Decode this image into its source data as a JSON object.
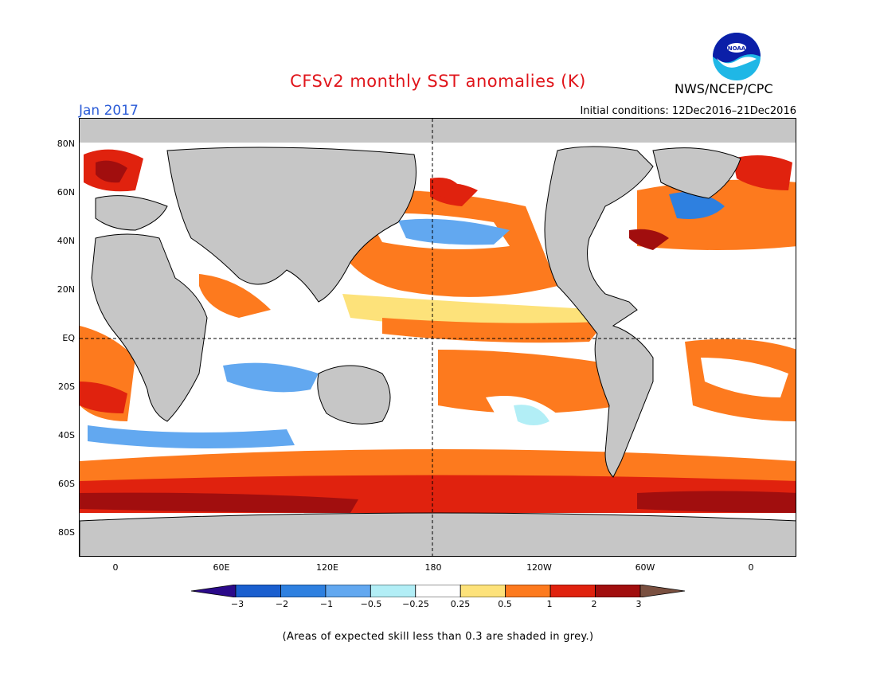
{
  "header": {
    "title": "CFSv2 monthly SST anomalies (K)",
    "month": "Jan 2017",
    "initial_conditions": "Initial conditions: 12Dec2016–21Dec2016",
    "agency": "NWS/NCEP/CPC",
    "logo_text": "NOAA"
  },
  "map": {
    "lat_labels": [
      "80N",
      "60N",
      "40N",
      "20N",
      "EQ",
      "20S",
      "40S",
      "60S",
      "80S"
    ],
    "lon_labels": [
      "0",
      "60E",
      "120E",
      "180",
      "120W",
      "60W",
      "0"
    ],
    "land_color": "#c6c6c6"
  },
  "colorbar": {
    "labels": [
      "−3",
      "−2",
      "−1",
      "−0.5",
      "−0.25",
      "0.25",
      "0.5",
      "1",
      "2",
      "3"
    ],
    "colors": [
      "#2b0a8a",
      "#1a5fcf",
      "#2e80e0",
      "#62a8f0",
      "#b2eef6",
      "#ffffff",
      "#fde27a",
      "#fd7a1e",
      "#e0220e",
      "#a10e0e",
      "#7a5040"
    ]
  },
  "footnote": "(Areas of expected skill less than 0.3 are shaded in grey.)"
}
